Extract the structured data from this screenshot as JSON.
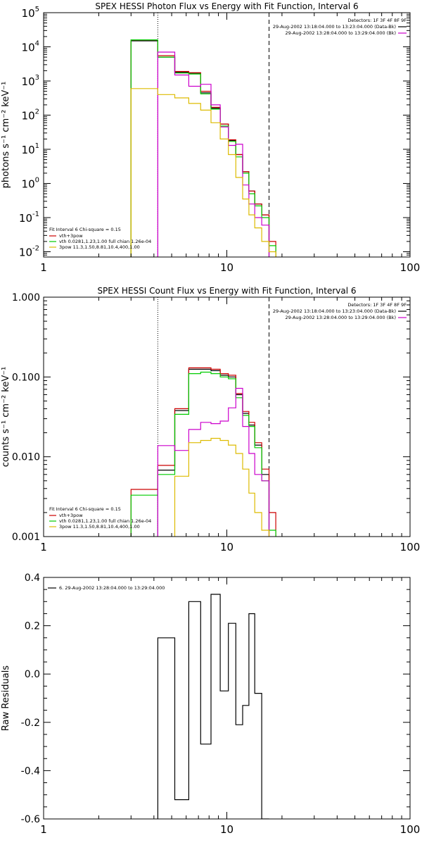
{
  "chart_data": [
    {
      "type": "line",
      "title": "SPEX HESSI Photon Flux vs Energy with Fit Function, Interval 6",
      "ylabel": "photons s⁻¹ cm⁻² keV⁻¹",
      "xlabel": "",
      "xscale": "log",
      "yscale": "log",
      "xlim": [
        1,
        100
      ],
      "ylim": [
        0.007,
        100000
      ],
      "grid": false,
      "x_ticks": [
        1,
        10,
        100
      ],
      "x_tick_labels": [
        "1",
        "10",
        "100"
      ],
      "y_ticks": [
        0.01,
        0.1,
        1,
        10,
        100,
        1000,
        10000,
        100000
      ],
      "y_tick_labels": [
        {
          "base": "10",
          "exp": "-2"
        },
        {
          "base": "10",
          "exp": "-1"
        },
        {
          "base": "10",
          "exp": "0"
        },
        {
          "base": "10",
          "exp": "1"
        },
        {
          "base": "10",
          "exp": "2"
        },
        {
          "base": "10",
          "exp": "3"
        },
        {
          "base": "10",
          "exp": "4"
        },
        {
          "base": "10",
          "exp": "5"
        }
      ],
      "vlines": [
        {
          "x": 4.2,
          "style": "dotted",
          "color": "#000000"
        },
        {
          "x": 4.2,
          "style": "solid",
          "color": "#cc00cc",
          "ymax": 10000
        },
        {
          "x": 17,
          "style": "dashed",
          "color": "#000000"
        }
      ],
      "legend_top_right": {
        "header": "Detectors: 1F 3F 4F 8F 9F",
        "entries": [
          {
            "text": "29-Aug-2002 13:18:04.000 to 13:23:04.000 (Data-Bk)",
            "color": "#000000"
          },
          {
            "text": "29-Aug-2002 13:28:04.000 to 13:29:04.000 (Bk)",
            "color": "#cc00cc"
          }
        ]
      },
      "legend_bottom_left": {
        "header": "Fit Interval 6   Chi-square = 0.15",
        "entries": [
          {
            "text": "vth+3pow",
            "color": "#cc0000"
          },
          {
            "text": "vth 0.0281,1.23,1.00  full chian 1.26e-04",
            "color": "#00cc00"
          },
          {
            "text": "3pow 11.3,1.50,8.81,10.4,400,1.00",
            "color": "#ddbb00"
          }
        ]
      },
      "series": [
        {
          "color": "#000000",
          "edges": [
            3,
            4.2,
            5.2,
            6.2,
            7.2,
            8.2,
            9.2,
            10.2,
            11.2,
            12.2,
            13.2,
            14.2,
            15.5,
            17
          ],
          "values": [
            15000,
            5000,
            1800,
            1700,
            450,
            160,
            55,
            18,
            7,
            2.2,
            0.6,
            0.25,
            0.12
          ]
        },
        {
          "color": "#cc0000",
          "edges": [
            3,
            4.2,
            5.2,
            6.2,
            7.2,
            8.2,
            9.2,
            10.2,
            11.2,
            12.2,
            13.2,
            14.2,
            15.5,
            17,
            18.5
          ],
          "values": [
            16000,
            5500,
            1900,
            1750,
            500,
            170,
            55,
            19,
            7,
            2.2,
            0.6,
            0.25,
            0.12,
            0.02
          ]
        },
        {
          "color": "#00cc00",
          "edges": [
            3,
            4.2,
            5.2,
            6.2,
            7.2,
            8.2,
            9.2,
            10.2,
            11.2,
            12.2,
            13.2,
            14.2,
            15.5,
            17,
            18.5
          ],
          "values": [
            16000,
            5000,
            1700,
            1600,
            420,
            150,
            48,
            17,
            6,
            2,
            0.5,
            0.22,
            0.1,
            0.015
          ]
        },
        {
          "color": "#cc00cc",
          "edges": [
            4.2,
            5.2,
            6.2,
            7.2,
            8.2,
            9.2,
            10.2,
            11.2,
            12.2,
            13.2,
            14.2,
            15.5,
            17
          ],
          "values": [
            7000,
            1500,
            700,
            800,
            200,
            45,
            13,
            14,
            0.9,
            0.25,
            0.1,
            0.06
          ]
        },
        {
          "color": "#ddbb00",
          "edges": [
            3,
            4.2,
            5.2,
            6.2,
            7.2,
            8.2,
            9.2,
            10.2,
            11.2,
            12.2,
            13.2,
            14.2,
            15.5,
            17,
            18.5
          ],
          "values": [
            600,
            400,
            320,
            220,
            140,
            60,
            20,
            7,
            1.5,
            0.35,
            0.12,
            0.05,
            0.02,
            0.01
          ]
        }
      ]
    },
    {
      "type": "line",
      "title": "SPEX HESSI Count Flux vs Energy with Fit Function, Interval 6",
      "ylabel": "counts s⁻¹ cm⁻² keV⁻¹",
      "xlabel": "",
      "xscale": "log",
      "yscale": "log",
      "xlim": [
        1,
        100
      ],
      "ylim": [
        0.001,
        1
      ],
      "grid": false,
      "x_ticks": [
        1,
        10,
        100
      ],
      "x_tick_labels": [
        "1",
        "10",
        "100"
      ],
      "y_ticks": [
        0.001,
        0.01,
        0.1,
        1
      ],
      "y_tick_labels": [
        "0.001",
        "0.010",
        "0.100",
        "1.000"
      ],
      "vlines": [
        {
          "x": 4.2,
          "style": "dotted",
          "color": "#000000"
        },
        {
          "x": 17,
          "style": "dashed",
          "color": "#000000"
        }
      ],
      "legend_top_right": {
        "header": "Detectors: 1F 3F 4F 8F 9F",
        "entries": [
          {
            "text": "29-Aug-2002 13:18:04.000 to 13:23:04.000 (Data-Bk)",
            "color": "#000000"
          },
          {
            "text": "29-Aug-2002 13:28:04.000 to 13:29:04.000 (Bk)",
            "color": "#cc00cc"
          }
        ]
      },
      "legend_bottom_left": {
        "header": "Fit Interval 6   Chi-square = 0.15",
        "entries": [
          {
            "text": "vth+3pow",
            "color": "#cc0000"
          },
          {
            "text": "vth 0.0281,1.23,1.00  full chian 1.26e-04",
            "color": "#00cc00"
          },
          {
            "text": "3pow 11.3,1.50,8.81,10.4,400,1.00",
            "color": "#ddbb00"
          }
        ]
      },
      "series": [
        {
          "color": "#000000",
          "edges": [
            4.2,
            5.2,
            6.2,
            7.2,
            8.2,
            9.2,
            10.2,
            11.2,
            12.2,
            13.2,
            14.2,
            15.5,
            17
          ],
          "values": [
            0.0068,
            0.038,
            0.125,
            0.125,
            0.12,
            0.105,
            0.1,
            0.06,
            0.035,
            0.025,
            0.014,
            0.006
          ]
        },
        {
          "color": "#cc0000",
          "edges": [
            3,
            4.2,
            5.2,
            6.2,
            7.2,
            8.2,
            9.2,
            10.2,
            11.2,
            12.2,
            13.2,
            14.2,
            15.5,
            17,
            18.5
          ],
          "values": [
            0.0039,
            0.0078,
            0.04,
            0.13,
            0.13,
            0.125,
            0.11,
            0.105,
            0.062,
            0.037,
            0.027,
            0.015,
            0.007,
            0.002
          ]
        },
        {
          "color": "#00cc00",
          "edges": [
            3,
            4.2,
            5.2,
            6.2,
            7.2,
            8.2,
            9.2,
            10.2,
            11.2,
            12.2,
            13.2,
            14.2,
            15.5,
            17,
            18.5
          ],
          "values": [
            0.0033,
            0.006,
            0.034,
            0.11,
            0.115,
            0.11,
            0.1,
            0.095,
            0.055,
            0.033,
            0.024,
            0.013,
            0.005,
            0.0012
          ]
        },
        {
          "color": "#cc00cc",
          "edges": [
            4.2,
            5.2,
            6.2,
            7.2,
            8.2,
            9.2,
            10.2,
            11.2,
            12.2,
            13.2,
            14.2,
            15.5,
            17
          ],
          "values": [
            0.0138,
            0.012,
            0.022,
            0.027,
            0.026,
            0.028,
            0.041,
            0.072,
            0.024,
            0.011,
            0.006,
            0.005
          ]
        },
        {
          "color": "#ddbb00",
          "edges": [
            5.2,
            6.2,
            7.2,
            8.2,
            9.2,
            10.2,
            11.2,
            12.2,
            13.2,
            14.2,
            15.5,
            17
          ],
          "values": [
            0.0057,
            0.015,
            0.016,
            0.017,
            0.016,
            0.014,
            0.011,
            0.007,
            0.0035,
            0.002,
            0.0012
          ]
        }
      ]
    },
    {
      "type": "line",
      "title": "",
      "ylabel": "Raw Residuals",
      "xlabel": "",
      "xscale": "log",
      "yscale": "linear",
      "xlim": [
        1,
        100
      ],
      "ylim": [
        -0.6,
        0.4
      ],
      "grid": false,
      "x_ticks": [
        1,
        10,
        100
      ],
      "x_tick_labels": [
        "1",
        "10",
        "100"
      ],
      "y_ticks": [
        -0.6,
        -0.4,
        -0.2,
        0.0,
        0.2,
        0.4
      ],
      "y_tick_labels": [
        "-0.6",
        "-0.4",
        "-0.2",
        "0.0",
        "0.2",
        "0.4"
      ],
      "vlines": [],
      "legend_top_left": {
        "entries": [
          {
            "text": "6. 29-Aug-2002 13:28:04.000 to 13:29:04.000",
            "color": "#000000"
          }
        ]
      },
      "series": [
        {
          "color": "#000000",
          "edges": [
            4.2,
            5.2,
            6.2,
            7.2,
            8.2,
            9.2,
            10.2,
            11.2,
            12.2,
            13.2,
            14.2,
            15.5,
            17
          ],
          "values": [
            0.15,
            -0.52,
            0.3,
            -0.29,
            0.33,
            -0.07,
            0.21,
            -0.21,
            -0.13,
            0.25,
            -0.08,
            -0.6
          ],
          "baseline": -0.6
        }
      ]
    }
  ]
}
